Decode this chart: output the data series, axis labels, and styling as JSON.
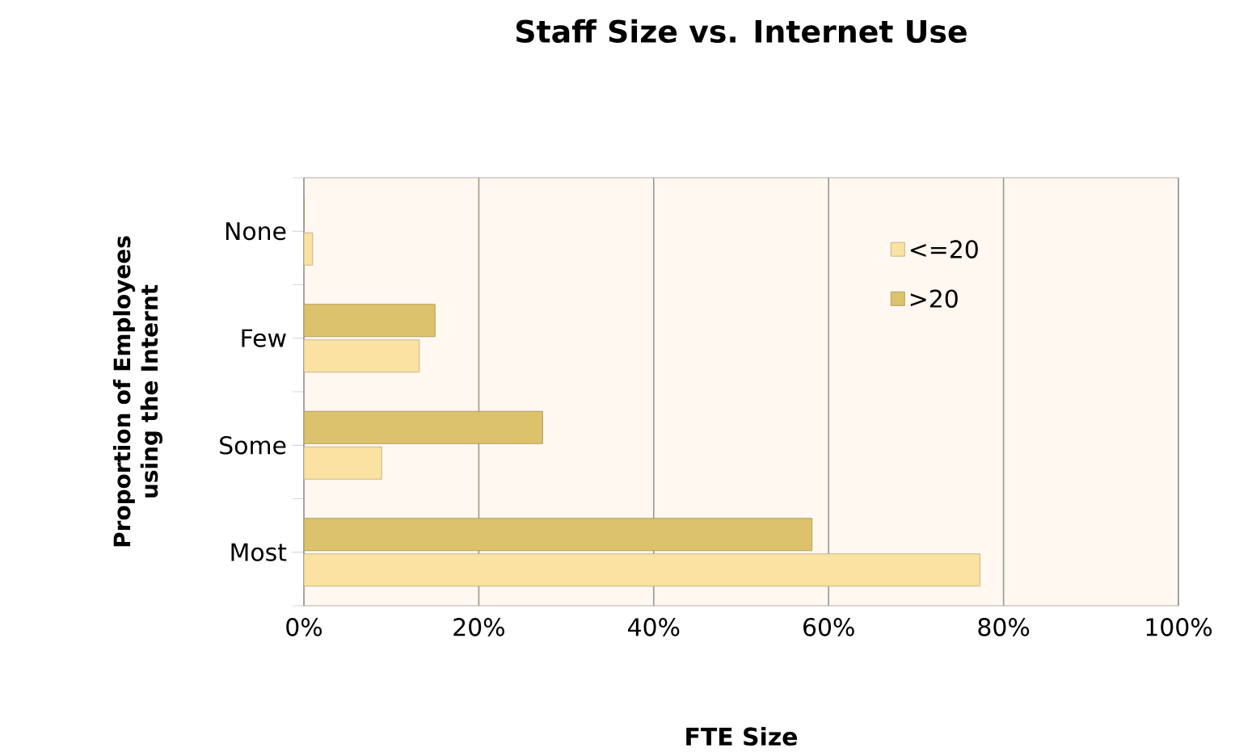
{
  "chart_data": {
    "type": "bar",
    "orientation": "horizontal",
    "title": "Staff Size vs. Internet Use",
    "xlabel": "FTE Size",
    "ylabel": "Proportion of Employees using the Internt",
    "categories": [
      "None",
      "Few",
      "Some",
      "Most"
    ],
    "series": [
      {
        "name": "<=20",
        "color": "#f9e2a2",
        "values": [
          1.0,
          13.2,
          8.9,
          77.3
        ]
      },
      {
        "name": ">20",
        "color": "#dcc26b",
        "values": [
          0,
          15.0,
          27.3,
          58.1
        ]
      }
    ],
    "xlim": [
      0,
      100
    ],
    "xticks": [
      {
        "value": 0,
        "label": "0%"
      },
      {
        "value": 20,
        "label": "20%"
      },
      {
        "value": 40,
        "label": "40%"
      },
      {
        "value": 60,
        "label": "60%"
      },
      {
        "value": 80,
        "label": "80%"
      },
      {
        "value": 100,
        "label": "100%"
      }
    ],
    "grid": "x",
    "legend": "right"
  }
}
